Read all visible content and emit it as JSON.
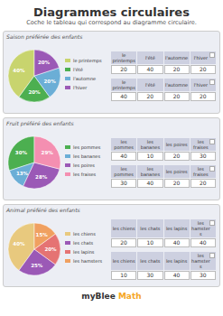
{
  "title": "Diagrammes circulaires",
  "subtitle": "Coche le tableau qui correspond au diagramme circulaire.",
  "chart_data": [
    {
      "type": "pie",
      "title": "Saison préférée des enfants",
      "categories": [
        "le printemps",
        "l'été",
        "l'automne",
        "l'hiver"
      ],
      "values": [
        40,
        20,
        20,
        20
      ],
      "value_labels": [
        "40%",
        "20%",
        "20%",
        "20%"
      ],
      "colors": [
        "#c8d46e",
        "#4caf50",
        "#6baed6",
        "#9b59b6"
      ],
      "data_labels": true,
      "tables": [
        {
          "columns": [
            "le printemps",
            "l'été",
            "l'automne",
            "l'hiver"
          ],
          "values": [
            20,
            40,
            20,
            20
          ]
        },
        {
          "columns": [
            "le printemps",
            "l'été",
            "l'automne",
            "l'hiver"
          ],
          "values": [
            40,
            20,
            20,
            20
          ]
        }
      ]
    },
    {
      "type": "pie",
      "title": "Fruit préféré des enfants",
      "categories": [
        "les pommes",
        "les bananes",
        "les poires",
        "les fraises"
      ],
      "values": [
        30,
        13,
        28,
        29
      ],
      "value_labels": [
        "30%",
        "13%",
        "28%",
        "29%"
      ],
      "colors": [
        "#4caf50",
        "#6baed6",
        "#9b59b6",
        "#f48fb1"
      ],
      "data_labels": true,
      "tables": [
        {
          "columns": [
            "les pommes",
            "les bananes",
            "les poires",
            "les fraises"
          ],
          "values": [
            40,
            10,
            20,
            30
          ]
        },
        {
          "columns": [
            "les pommes",
            "les bananes",
            "les poires",
            "les fraises"
          ],
          "values": [
            30,
            40,
            20,
            20
          ]
        }
      ]
    },
    {
      "type": "pie",
      "title": "Animal préféré des enfants",
      "categories": [
        "les chiens",
        "les chats",
        "les lapins",
        "les hamsters"
      ],
      "values": [
        40,
        25,
        20,
        15
      ],
      "value_labels": [
        "40%",
        "25%",
        "20%",
        "15%"
      ],
      "colors": [
        "#e8c97e",
        "#9b59b6",
        "#e57373",
        "#f0a060"
      ],
      "data_labels": true,
      "tables": [
        {
          "columns": [
            "les chiens",
            "les chats",
            "les lapins",
            "les hamsters"
          ],
          "values": [
            20,
            10,
            40,
            40
          ]
        },
        {
          "columns": [
            "les chiens",
            "les chats",
            "les lapins",
            "les hamsters"
          ],
          "values": [
            10,
            30,
            40,
            30
          ]
        }
      ]
    }
  ],
  "footer": [
    {
      "text": "myBlee ",
      "color": "#333333"
    },
    {
      "text": "Math",
      "color": "#f5a623"
    }
  ]
}
